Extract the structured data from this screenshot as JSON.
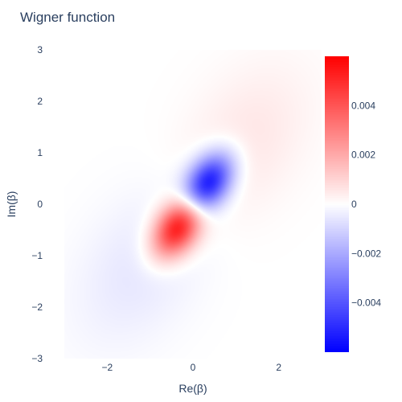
{
  "chart_data": {
    "type": "heatmap",
    "title": "Wigner function",
    "xlabel": "Re(β)",
    "ylabel": "Im(β)",
    "xlim": [
      -3,
      3
    ],
    "ylim": [
      -3,
      3
    ],
    "x_ticks": [
      -2,
      0,
      2
    ],
    "x_tick_labels": [
      "−2",
      "0",
      "2"
    ],
    "y_ticks": [
      3,
      2,
      1,
      0,
      -1,
      -2,
      -3
    ],
    "y_tick_labels": [
      "3",
      "2",
      "1",
      "0",
      "−1",
      "−2",
      "−3"
    ],
    "colorscale": [
      "#0000ff",
      "#ffffff",
      "#ff0000"
    ],
    "zlim": [
      -0.006,
      0.006
    ],
    "colorbar_ticks": [
      0.004,
      0.002,
      0,
      -0.002,
      -0.004
    ],
    "colorbar_tick_labels": [
      "0.004",
      "0.002",
      "0",
      "−0.002",
      "−0.004"
    ],
    "features": [
      {
        "x": -0.35,
        "y": -0.45,
        "z": 0.0058
      },
      {
        "x": 0.35,
        "y": 0.4,
        "z": -0.0058
      },
      {
        "x": -1.2,
        "y": -1.2,
        "z": -0.0006
      },
      {
        "x": 1.2,
        "y": 1.2,
        "z": 0.0006
      }
    ]
  }
}
